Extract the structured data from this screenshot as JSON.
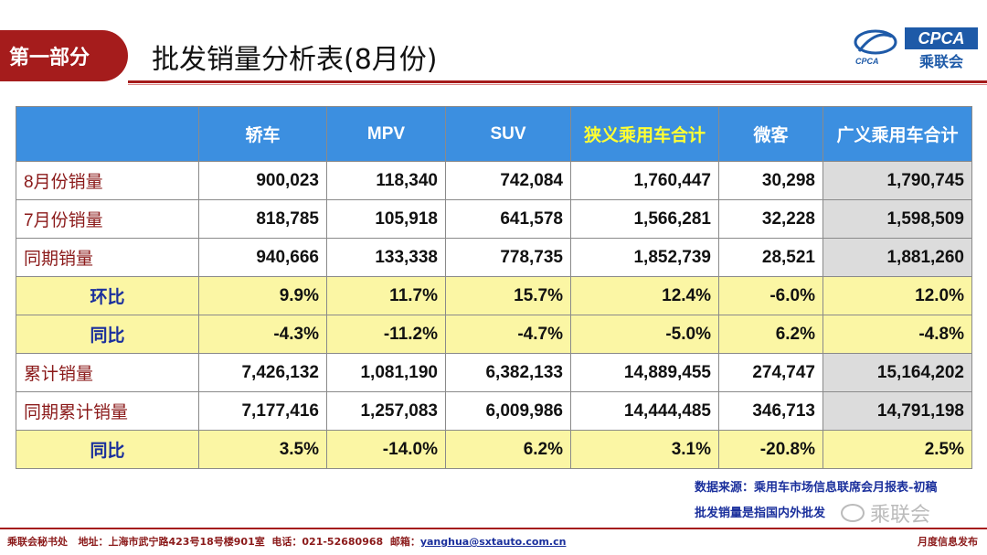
{
  "header": {
    "section_label": "第一部分",
    "title": "批发销量分析表(8月份)",
    "logo_text": "CPCA",
    "logo_sub": "乘联会",
    "logo_small": "CPCA"
  },
  "table": {
    "columns": [
      "",
      "轿车",
      "MPV",
      "SUV",
      "狭义乘用车合计",
      "微客",
      "广义乘用车合计"
    ],
    "rows": [
      {
        "label": "8月份销量",
        "type": "count",
        "values": [
          "900,023",
          "118,340",
          "742,084",
          "1,760,447",
          "30,298",
          "1,790,745"
        ]
      },
      {
        "label": "7月份销量",
        "type": "count",
        "values": [
          "818,785",
          "105,918",
          "641,578",
          "1,566,281",
          "32,228",
          "1,598,509"
        ]
      },
      {
        "label": "同期销量",
        "type": "count",
        "values": [
          "940,666",
          "133,338",
          "778,735",
          "1,852,739",
          "28,521",
          "1,881,260"
        ]
      },
      {
        "label": "环比",
        "type": "pct",
        "values": [
          "9.9%",
          "11.7%",
          "15.7%",
          "12.4%",
          "-6.0%",
          "12.0%"
        ]
      },
      {
        "label": "同比",
        "type": "pct",
        "values": [
          "-4.3%",
          "-11.2%",
          "-4.7%",
          "-5.0%",
          "6.2%",
          "-4.8%"
        ]
      },
      {
        "label": "累计销量",
        "type": "count",
        "values": [
          "7,426,132",
          "1,081,190",
          "6,382,133",
          "14,889,455",
          "274,747",
          "15,164,202"
        ]
      },
      {
        "label": "同期累计销量",
        "type": "count",
        "values": [
          "7,177,416",
          "1,257,083",
          "6,009,986",
          "14,444,485",
          "346,713",
          "14,791,198"
        ]
      },
      {
        "label": "同比",
        "type": "pct",
        "values": [
          "3.5%",
          "-14.0%",
          "6.2%",
          "3.1%",
          "-20.8%",
          "2.5%"
        ]
      }
    ]
  },
  "notes": {
    "source": "数据来源：乘用车市场信息联席会月报表-初稿",
    "definition": "批发销量是指国内外批发"
  },
  "watermark": "乘联会",
  "footer": {
    "org": "乘联会秘书处",
    "address": "地址：上海市武宁路423号18号楼901室",
    "phone": "电话：021-52680968",
    "email_label": "邮箱：",
    "email": "yanghua@sxtauto.com.cn",
    "right": "月度信息发布"
  },
  "colors": {
    "brand_red": "#a51c1c",
    "header_blue": "#3c8fe0",
    "pct_yellow": "#fbf6a4",
    "logo_blue": "#1e5aa8"
  }
}
